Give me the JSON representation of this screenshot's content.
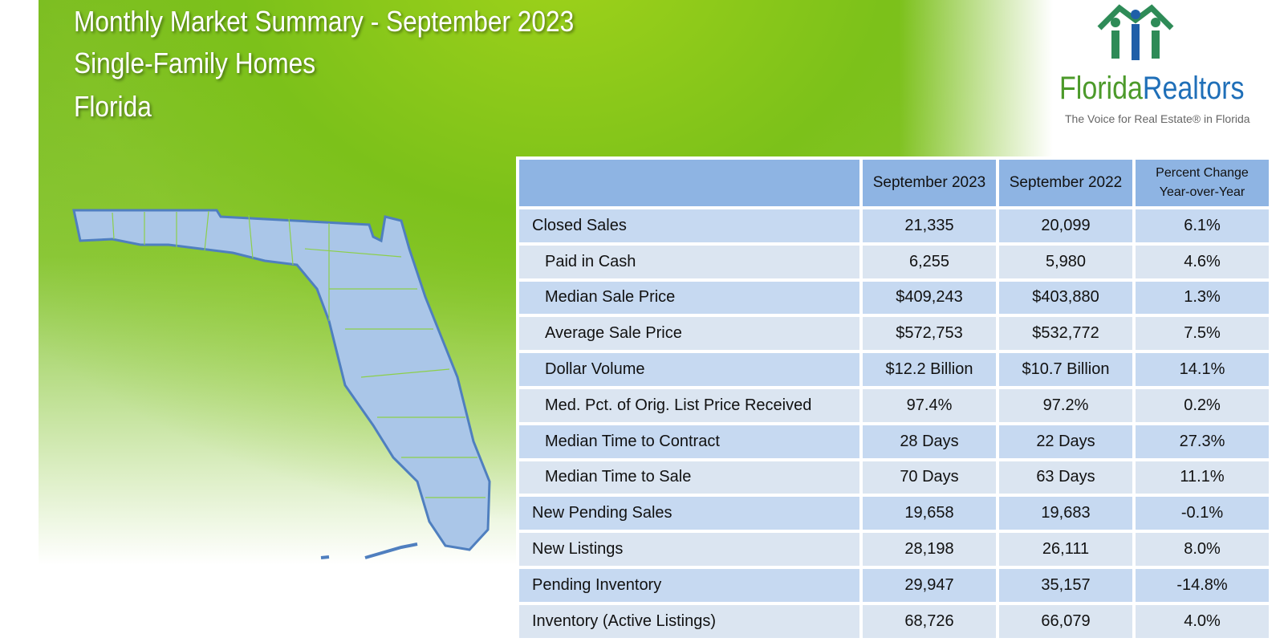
{
  "header": {
    "title_lines": [
      "Monthly Market Summary - September 2023",
      "Single-Family Homes",
      "Florida"
    ]
  },
  "logo": {
    "name_part1": "Florida",
    "name_part2": "Realtors",
    "tagline": "The Voice for Real Estate® in Florida"
  },
  "table": {
    "columns": [
      "September 2023",
      "September 2022",
      [
        "Percent Change",
        "Year-over-Year"
      ]
    ],
    "rows": [
      {
        "label": "Closed Sales",
        "cells": [
          "21,335",
          "20,099",
          "6.1%"
        ],
        "sub_rows": [
          {
            "label": "Paid in Cash",
            "cells": [
              "6,255",
              "5,980",
              "4.6%"
            ]
          },
          {
            "label": "Median Sale Price",
            "cells": [
              "$409,243",
              "$403,880",
              "1.3%"
            ]
          },
          {
            "label": "Average Sale Price",
            "cells": [
              "$572,753",
              "$532,772",
              "7.5%"
            ]
          },
          {
            "label": "Dollar Volume",
            "cells": [
              "$12.2 Billion",
              "$10.7 Billion",
              "14.1%"
            ]
          },
          {
            "label": "Med. Pct. of Orig. List Price Received",
            "cells": [
              "97.4%",
              "97.2%",
              "0.2%"
            ]
          },
          {
            "label": "Median Time to Contract",
            "cells": [
              "28 Days",
              "22 Days",
              "27.3%"
            ]
          },
          {
            "label": "Median Time to Sale",
            "cells": [
              "70 Days",
              "63 Days",
              "11.1%"
            ]
          }
        ]
      },
      {
        "label": "New Pending Sales",
        "cells": [
          "19,658",
          "19,683",
          "-0.1%"
        ]
      },
      {
        "label": "New Listings",
        "cells": [
          "28,198",
          "26,111",
          "8.0%"
        ]
      },
      {
        "label": "Pending Inventory",
        "cells": [
          "29,947",
          "35,157",
          "-14.8%"
        ]
      },
      {
        "label": "Inventory (Active Listings)",
        "cells": [
          "68,726",
          "66,079",
          "4.0%"
        ]
      }
    ]
  }
}
